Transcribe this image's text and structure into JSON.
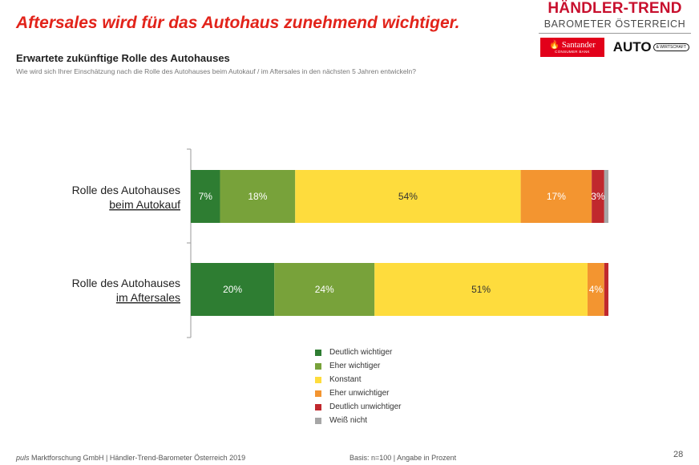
{
  "headline": "Aftersales wird für das Autohaus zunehmend wichtiger.",
  "brand": {
    "title": "HÄNDLER-TREND",
    "subtitle": "BAROMETER ÖSTERREICH",
    "santander": "Santander",
    "santander_sub": "CONSUMER BANK",
    "auto": "AUTO",
    "auto_sub": "& WIRTSCHAFT"
  },
  "section_title": "Erwartete zukünftige Rolle des Autohauses",
  "question": "Wie wird sich Ihrer Einschätzung nach die Rolle des Autohauses beim Autokauf / im Aftersales in den nächsten 5 Jahren entwickeln?",
  "chart_data": {
    "type": "bar",
    "orientation": "horizontal",
    "stacked": true,
    "unit": "%",
    "xlim": [
      0,
      100
    ],
    "grid": false,
    "legend_position": "bottom",
    "categories": [
      {
        "line1": "Rolle des Autohauses",
        "line2": "beim Autokauf"
      },
      {
        "line1": "Rolle des Autohauses",
        "line2": "im Aftersales"
      }
    ],
    "series": [
      {
        "name": "Deutlich wichtiger",
        "color": "#2e7d32",
        "values": [
          7,
          20
        ],
        "labels": [
          "7%",
          "20%"
        ]
      },
      {
        "name": "Eher wichtiger",
        "color": "#78a23a",
        "values": [
          18,
          24
        ],
        "labels": [
          "18%",
          "24%"
        ]
      },
      {
        "name": "Konstant",
        "color": "#fedc3d",
        "values": [
          54,
          51
        ],
        "labels": [
          "54%",
          "51%"
        ]
      },
      {
        "name": "Eher unwichtiger",
        "color": "#f39530",
        "values": [
          17,
          4
        ],
        "labels": [
          "17%",
          "4%"
        ]
      },
      {
        "name": "Deutlich unwichtiger",
        "color": "#c0282d",
        "values": [
          3,
          1
        ],
        "labels": [
          "3%",
          ""
        ]
      },
      {
        "name": "Weiß nicht",
        "color": "#a6a6a6",
        "values": [
          1,
          0
        ],
        "labels": [
          "",
          ""
        ]
      }
    ]
  },
  "footer": {
    "company_italic": "puls",
    "company_rest": " Marktforschung GmbH | Händler-Trend-Barometer Österreich 2019",
    "basis": "Basis: n=100 | Angabe in Prozent",
    "page": "28"
  }
}
